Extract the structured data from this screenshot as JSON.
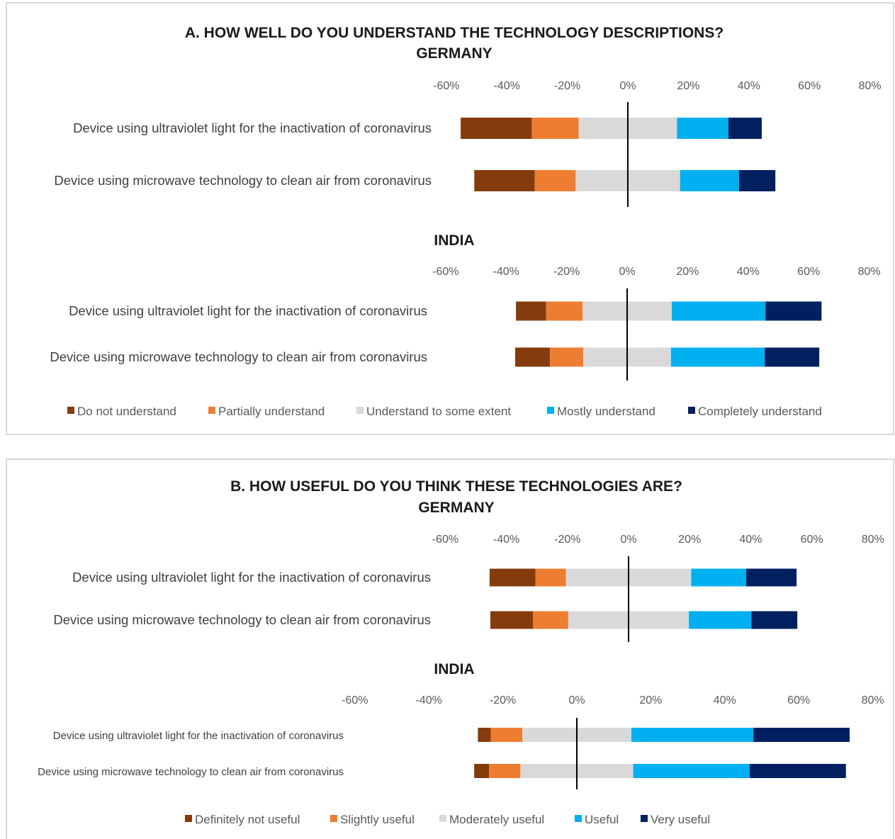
{
  "chart_data": [
    {
      "type": "bar",
      "stacked": "diverging",
      "orientation": "horizontal",
      "title": "A. HOW WELL DO YOU UNDERSTAND THE TECHNOLOGY DESCRIPTIONS?",
      "xlim": [
        -60,
        80
      ],
      "ticks": [
        "-60%",
        "-40%",
        "-20%",
        "0%",
        "20%",
        "40%",
        "60%",
        "80%"
      ],
      "legend": {
        "position": "bottom",
        "items": [
          "Do not understand",
          "Partially understand",
          "Understand to some extent",
          "Mostly understand",
          "Completely understand"
        ]
      },
      "colors": [
        "#843c0c",
        "#ed7d31",
        "#d9d9d9",
        "#00b0f0",
        "#002060"
      ],
      "groups": [
        {
          "title": "GERMANY",
          "categories": [
            "Device using ultraviolet light for the inactivation of coronavirus",
            "Device using microwave technology to clean air from coronavirus"
          ],
          "values": [
            [
              23.5,
              15.5,
              32.5,
              17,
              11
            ],
            [
              20,
              13.5,
              34.5,
              19.5,
              12
            ]
          ]
        },
        {
          "title": "INDIA",
          "categories": [
            "Device using ultraviolet light for the inactivation of coronavirus",
            "Device using microwave technology to clean air from coronavirus"
          ],
          "values": [
            [
              10,
              12,
              29.5,
              31,
              18.5
            ],
            [
              11.5,
              11,
              29,
              31,
              18
            ]
          ]
        }
      ]
    },
    {
      "type": "bar",
      "stacked": "diverging",
      "orientation": "horizontal",
      "title": "B. HOW USEFUL DO YOU THINK THESE TECHNOLOGIES ARE?",
      "xlim": [
        -60,
        80
      ],
      "ticks": [
        "-60%",
        "-40%",
        "-20%",
        "0%",
        "20%",
        "40%",
        "60%",
        "80%"
      ],
      "legend": {
        "position": "bottom",
        "items": [
          "Definitely not useful",
          "Slightly useful",
          "Moderately useful",
          "Useful",
          "Very useful"
        ]
      },
      "colors": [
        "#843c0c",
        "#ed7d31",
        "#d9d9d9",
        "#00b0f0",
        "#002060"
      ],
      "groups": [
        {
          "title": "GERMANY",
          "categories": [
            "Device using ultraviolet light for the inactivation of coronavirus",
            "Device using microwave technology to clean air from coronavirus"
          ],
          "values": [
            [
              15,
              10,
              41,
              18,
              16.5
            ],
            [
              14,
              11.5,
              39.5,
              20.5,
              15
            ]
          ]
        },
        {
          "title": "INDIA",
          "categories": [
            "Device using ultraviolet light for the inactivation of coronavirus",
            "Device using microwave technology to clean air from coronavirus"
          ],
          "values": [
            [
              3.5,
              8.5,
              29.5,
              33,
              26
            ],
            [
              4,
              8.5,
              30.5,
              31.5,
              26
            ]
          ]
        }
      ]
    }
  ]
}
